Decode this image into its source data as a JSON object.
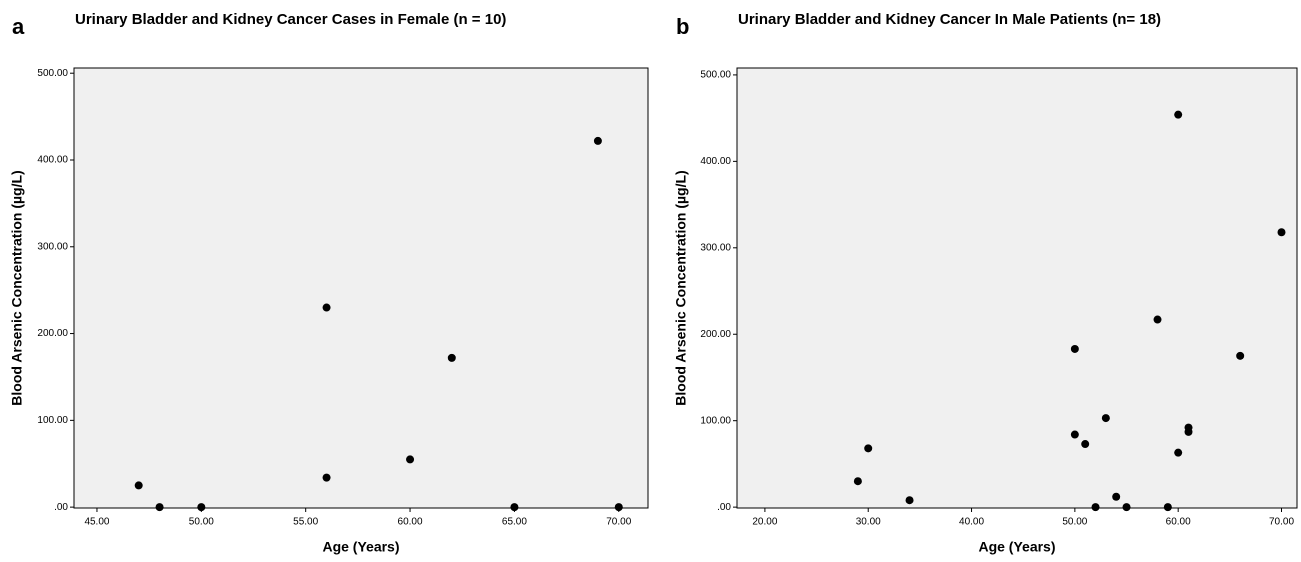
{
  "chart_data": [
    {
      "type": "scatter",
      "panel": "a",
      "title": "Urinary Bladder and Kidney Cancer Cases in Female (n = 10)",
      "x_label": "Age (Years)",
      "y_label": "Blood Arsenic Concentration (µg/L)",
      "x": [
        47,
        48,
        50,
        56,
        56,
        60,
        62,
        65,
        69,
        70
      ],
      "y": [
        25,
        0,
        0,
        230,
        34,
        55,
        172,
        0,
        422,
        0
      ],
      "color": "#000000",
      "xlim": [
        43.9,
        71.4
      ],
      "ylim": [
        -1,
        506
      ],
      "xticks": [
        {
          "value": 45,
          "label": "45.00"
        },
        {
          "value": 50,
          "label": "50.00"
        },
        {
          "value": 55,
          "label": "55.00"
        },
        {
          "value": 60,
          "label": "60.00"
        },
        {
          "value": 65,
          "label": "65.00"
        },
        {
          "value": 70,
          "label": "70.00"
        }
      ],
      "yticks": [
        {
          "value": 0,
          "label": ".00"
        },
        {
          "value": 100,
          "label": "100.00"
        },
        {
          "value": 200,
          "label": "200.00"
        },
        {
          "value": 300,
          "label": "300.00"
        },
        {
          "value": 400,
          "label": "400.00"
        },
        {
          "value": 500,
          "label": "500.00"
        }
      ]
    },
    {
      "type": "scatter",
      "panel": "b",
      "title": "Urinary Bladder and Kidney Cancer In Male Patients (n= 18)",
      "x_label": "Age (Years)",
      "y_label": "Blood Arsenic Concentration (µg/L)",
      "x": [
        29,
        30,
        34,
        50,
        50,
        51,
        52,
        53,
        54,
        55,
        58,
        59,
        60,
        60,
        61,
        61,
        66,
        70
      ],
      "y": [
        30,
        68,
        8,
        183,
        84,
        73,
        0,
        103,
        12,
        0,
        217,
        0,
        454,
        63,
        92,
        87,
        175,
        318
      ],
      "color": "#000000",
      "xlim": [
        17.3,
        71.5
      ],
      "ylim": [
        -1,
        508
      ],
      "xticks": [
        {
          "value": 20,
          "label": "20.00"
        },
        {
          "value": 30,
          "label": "30.00"
        },
        {
          "value": 40,
          "label": "40.00"
        },
        {
          "value": 50,
          "label": "50.00"
        },
        {
          "value": 60,
          "label": "60.00"
        },
        {
          "value": 70,
          "label": "70.00"
        }
      ],
      "yticks": [
        {
          "value": 0,
          "label": ".00"
        },
        {
          "value": 100,
          "label": "100.00"
        },
        {
          "value": 200,
          "label": "200.00"
        },
        {
          "value": 300,
          "label": "300.00"
        },
        {
          "value": 400,
          "label": "400.00"
        },
        {
          "value": 500,
          "label": "500.00"
        }
      ]
    }
  ]
}
